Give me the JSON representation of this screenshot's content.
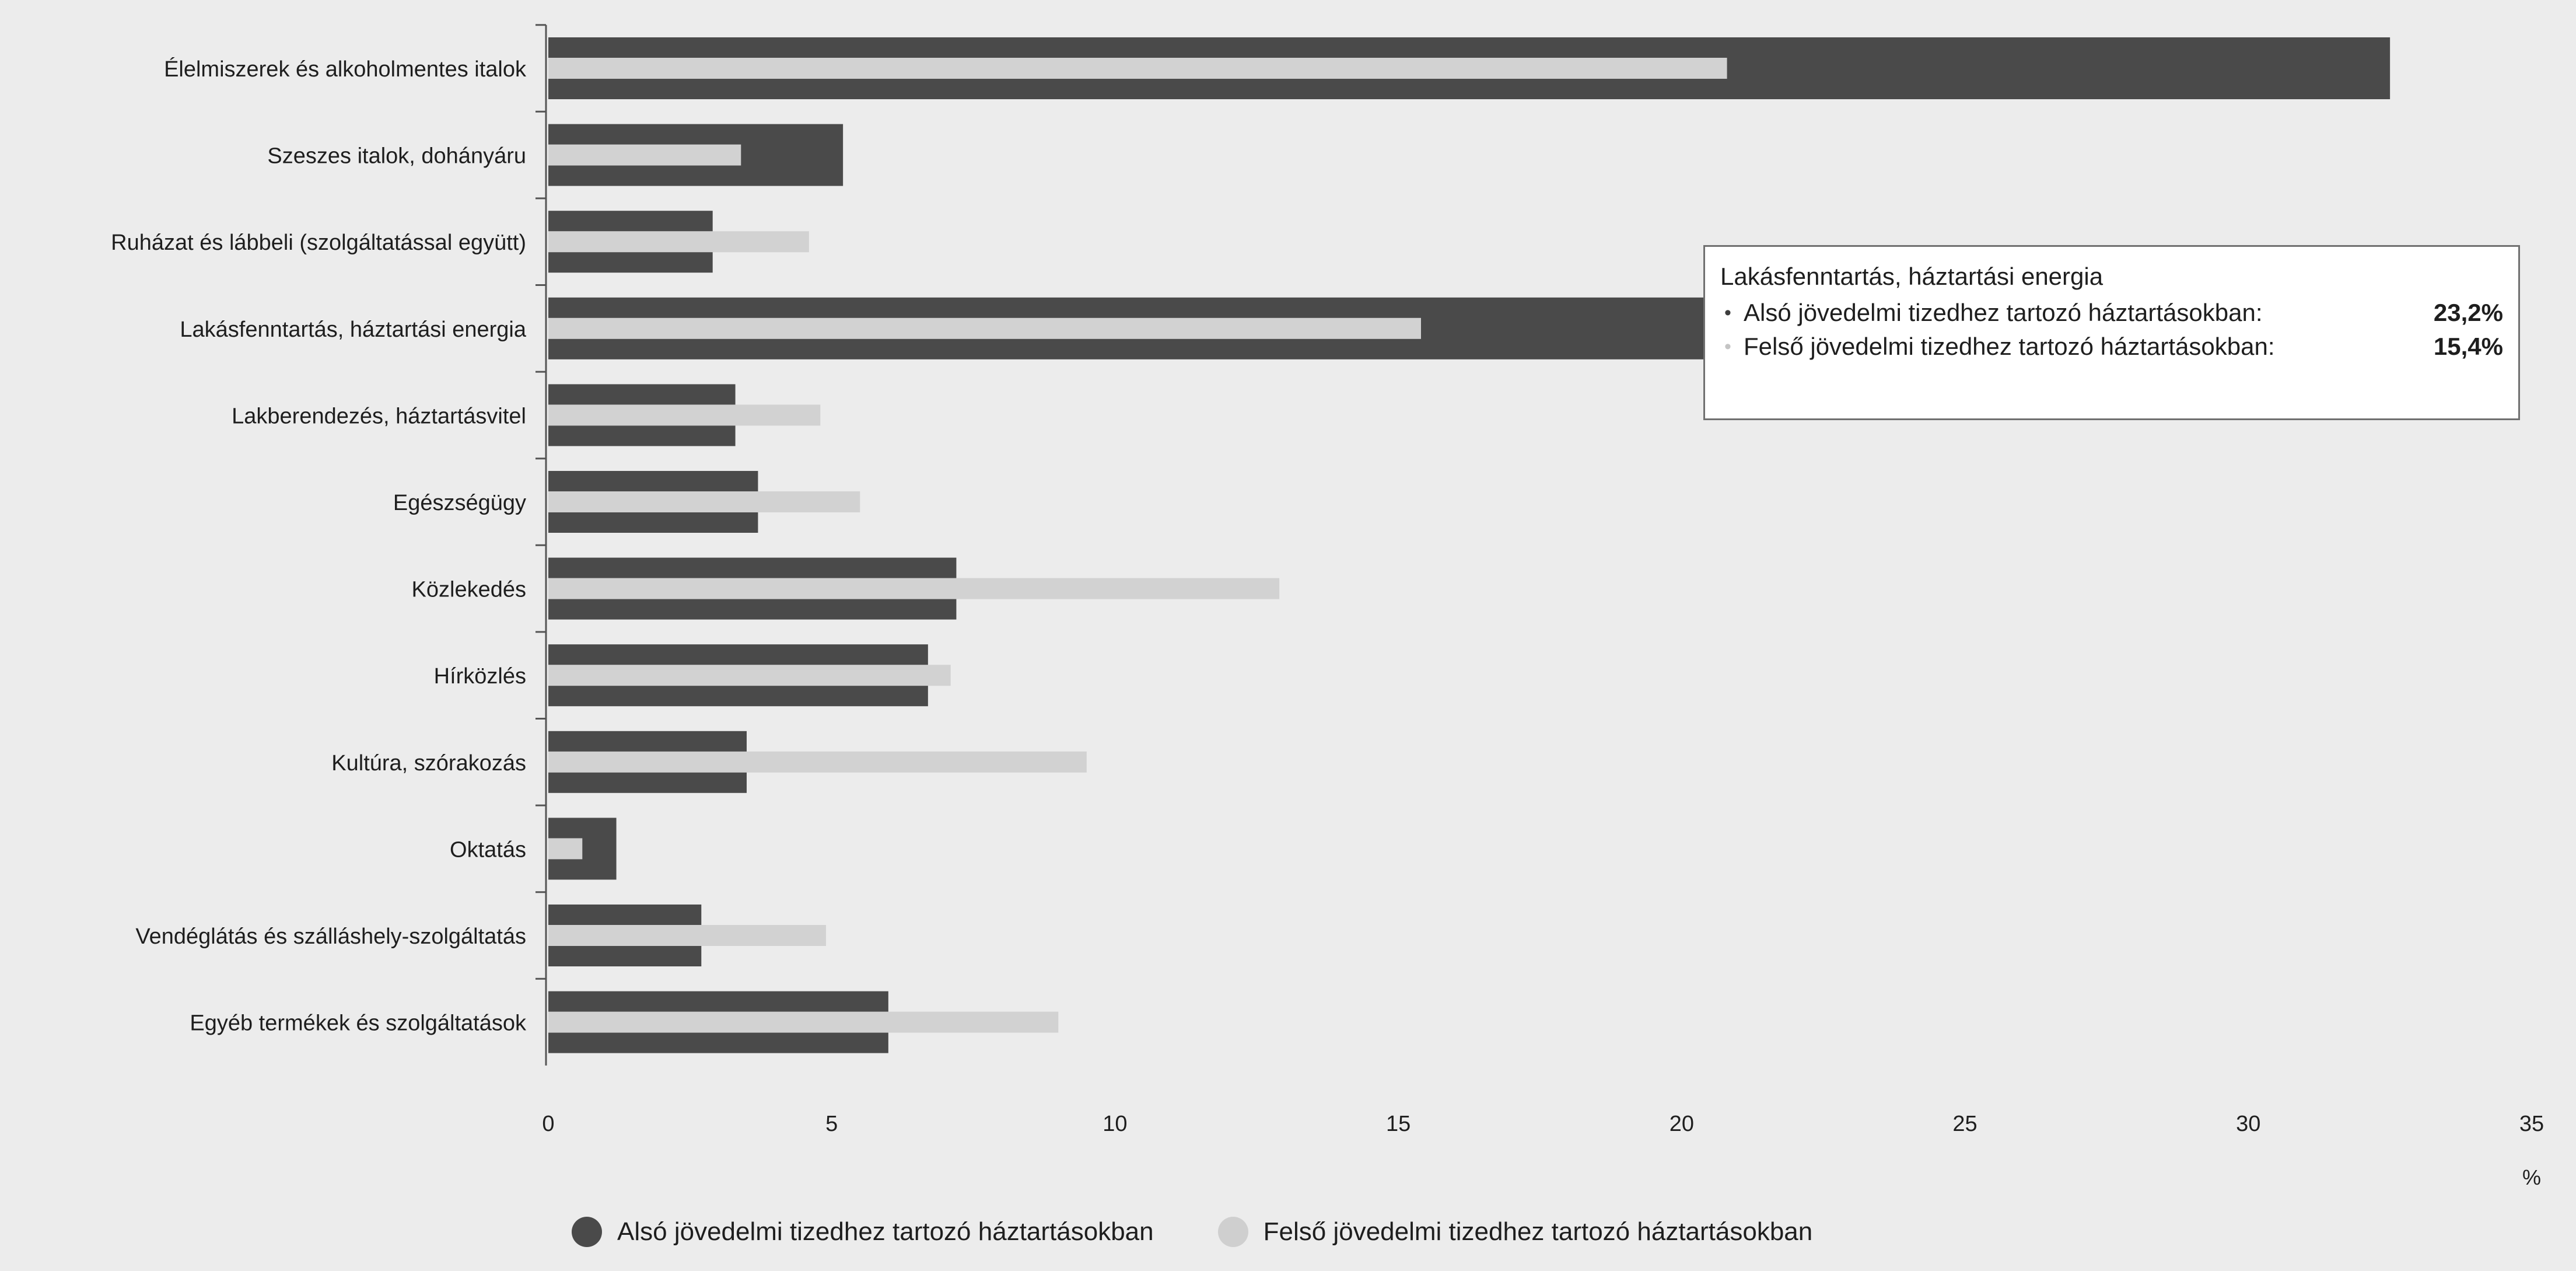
{
  "chart_data": {
    "type": "bar",
    "orientation": "horizontal",
    "categories": [
      "Élelmiszerek és alkoholmentes italok",
      "Szeszes italok, dohányáru",
      "Ruházat és lábbeli (szolgáltatással együtt)",
      "Lakásfenntartás, háztartási energia",
      "Lakberendezés, háztartásvitel",
      "Egészségügy",
      "Közlekedés",
      "Hírközlés",
      "Kultúra, szórakozás",
      "Oktatás",
      "Vendéglátás és szálláshely-szolgáltatás",
      "Egyéb termékek és szolgáltatások"
    ],
    "series": [
      {
        "name": "Alsó jövedelmi tizedhez tartozó háztartásokban",
        "color": "#4a4a4a",
        "values": [
          32.5,
          5.2,
          2.9,
          23.2,
          3.3,
          3.7,
          7.2,
          6.7,
          3.5,
          1.2,
          2.7,
          6.0
        ]
      },
      {
        "name": "Felső jövedelmi tizedhez tartozó háztartásokban",
        "color": "#d2d2d2",
        "values": [
          20.8,
          3.4,
          4.6,
          15.4,
          4.8,
          5.5,
          12.9,
          7.1,
          9.5,
          0.6,
          4.9,
          9.0
        ]
      }
    ],
    "xlim": [
      0,
      35
    ],
    "xticks": [
      "0",
      "5",
      "10",
      "15",
      "20",
      "25",
      "30",
      "35"
    ],
    "xunit": "%",
    "grid": false,
    "legend_position": "bottom",
    "tooltip": {
      "title": "Lakásfenntartás, háztartási energia",
      "rows": [
        {
          "label": "Alsó jövedelmi tizedhez tartozó háztartásokban:",
          "value": "23,2%",
          "marker": "•"
        },
        {
          "label": "Felső jövedelmi tizedhez tartozó háztartásokban:",
          "value": "15,4%",
          "marker": "•"
        }
      ]
    }
  }
}
